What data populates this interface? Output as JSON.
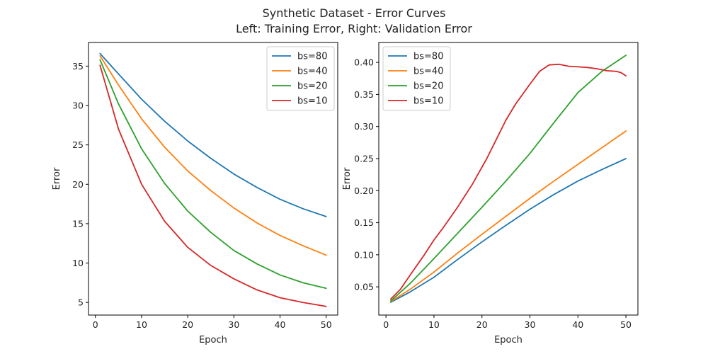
{
  "figure": {
    "title": "Synthetic Dataset - Error Curves",
    "subtitle": "Left: Training Error, Right: Validation Error"
  },
  "chart_data": [
    {
      "type": "line",
      "title": "",
      "xlabel": "Epoch",
      "ylabel": "Error",
      "xlim": [
        -1.5,
        52.5
      ],
      "ylim": [
        3.4,
        38.0
      ],
      "xticks": [
        0,
        10,
        20,
        30,
        40,
        50
      ],
      "yticks": [
        5,
        10,
        15,
        20,
        25,
        30,
        35
      ],
      "legend": "top-right",
      "x": [
        1,
        5,
        10,
        15,
        20,
        25,
        30,
        35,
        40,
        45,
        50
      ],
      "series": [
        {
          "name": "bs=80",
          "color": "#1f77b4",
          "values": [
            36.6,
            34.0,
            30.8,
            28.0,
            25.5,
            23.3,
            21.3,
            19.6,
            18.1,
            16.9,
            15.9
          ]
        },
        {
          "name": "bs=40",
          "color": "#ff7f0e",
          "values": [
            36.3,
            32.6,
            28.3,
            24.7,
            21.7,
            19.2,
            17.0,
            15.1,
            13.5,
            12.2,
            11.0
          ]
        },
        {
          "name": "bs=20",
          "color": "#2ca02c",
          "values": [
            35.8,
            30.2,
            24.5,
            20.1,
            16.6,
            13.9,
            11.6,
            9.9,
            8.5,
            7.5,
            6.8
          ]
        },
        {
          "name": "bs=10",
          "color": "#d62728",
          "values": [
            35.1,
            27.0,
            20.0,
            15.3,
            12.0,
            9.7,
            8.0,
            6.6,
            5.6,
            5.0,
            4.5
          ]
        }
      ]
    },
    {
      "type": "line",
      "title": "",
      "xlabel": "Epoch",
      "ylabel": "Error",
      "xlim": [
        -1.5,
        52.5
      ],
      "ylim": [
        0.006,
        0.431
      ],
      "xticks": [
        0,
        10,
        20,
        30,
        40,
        50
      ],
      "yticks": [
        0.05,
        0.1,
        0.15,
        0.2,
        0.25,
        0.3,
        0.35,
        0.4
      ],
      "legend": "top-left",
      "series": [
        {
          "name": "bs=80",
          "color": "#1f77b4",
          "x": [
            1,
            5,
            10,
            15,
            20,
            25,
            30,
            35,
            40,
            45,
            50
          ],
          "values": [
            0.026,
            0.042,
            0.065,
            0.093,
            0.12,
            0.146,
            0.171,
            0.194,
            0.215,
            0.233,
            0.25
          ]
        },
        {
          "name": "bs=40",
          "color": "#ff7f0e",
          "x": [
            1,
            5,
            10,
            15,
            20,
            25,
            30,
            35,
            40,
            45,
            50
          ],
          "values": [
            0.027,
            0.046,
            0.073,
            0.103,
            0.132,
            0.16,
            0.188,
            0.215,
            0.241,
            0.267,
            0.293
          ]
        },
        {
          "name": "bs=20",
          "color": "#2ca02c",
          "x": [
            1,
            5,
            10,
            15,
            20,
            25,
            30,
            35,
            40,
            45,
            50
          ],
          "values": [
            0.028,
            0.055,
            0.094,
            0.134,
            0.174,
            0.215,
            0.258,
            0.306,
            0.353,
            0.386,
            0.411
          ]
        },
        {
          "name": "bs=10",
          "color": "#d62728",
          "x": [
            1,
            3,
            5,
            8,
            10,
            12,
            15,
            18,
            21,
            23,
            25,
            27,
            30,
            32,
            34,
            36,
            38,
            40,
            42,
            44,
            46,
            48,
            49,
            50
          ],
          "values": [
            0.031,
            0.046,
            0.068,
            0.1,
            0.123,
            0.143,
            0.175,
            0.21,
            0.25,
            0.28,
            0.31,
            0.335,
            0.366,
            0.386,
            0.396,
            0.397,
            0.394,
            0.393,
            0.392,
            0.39,
            0.387,
            0.386,
            0.384,
            0.379
          ]
        }
      ]
    }
  ]
}
